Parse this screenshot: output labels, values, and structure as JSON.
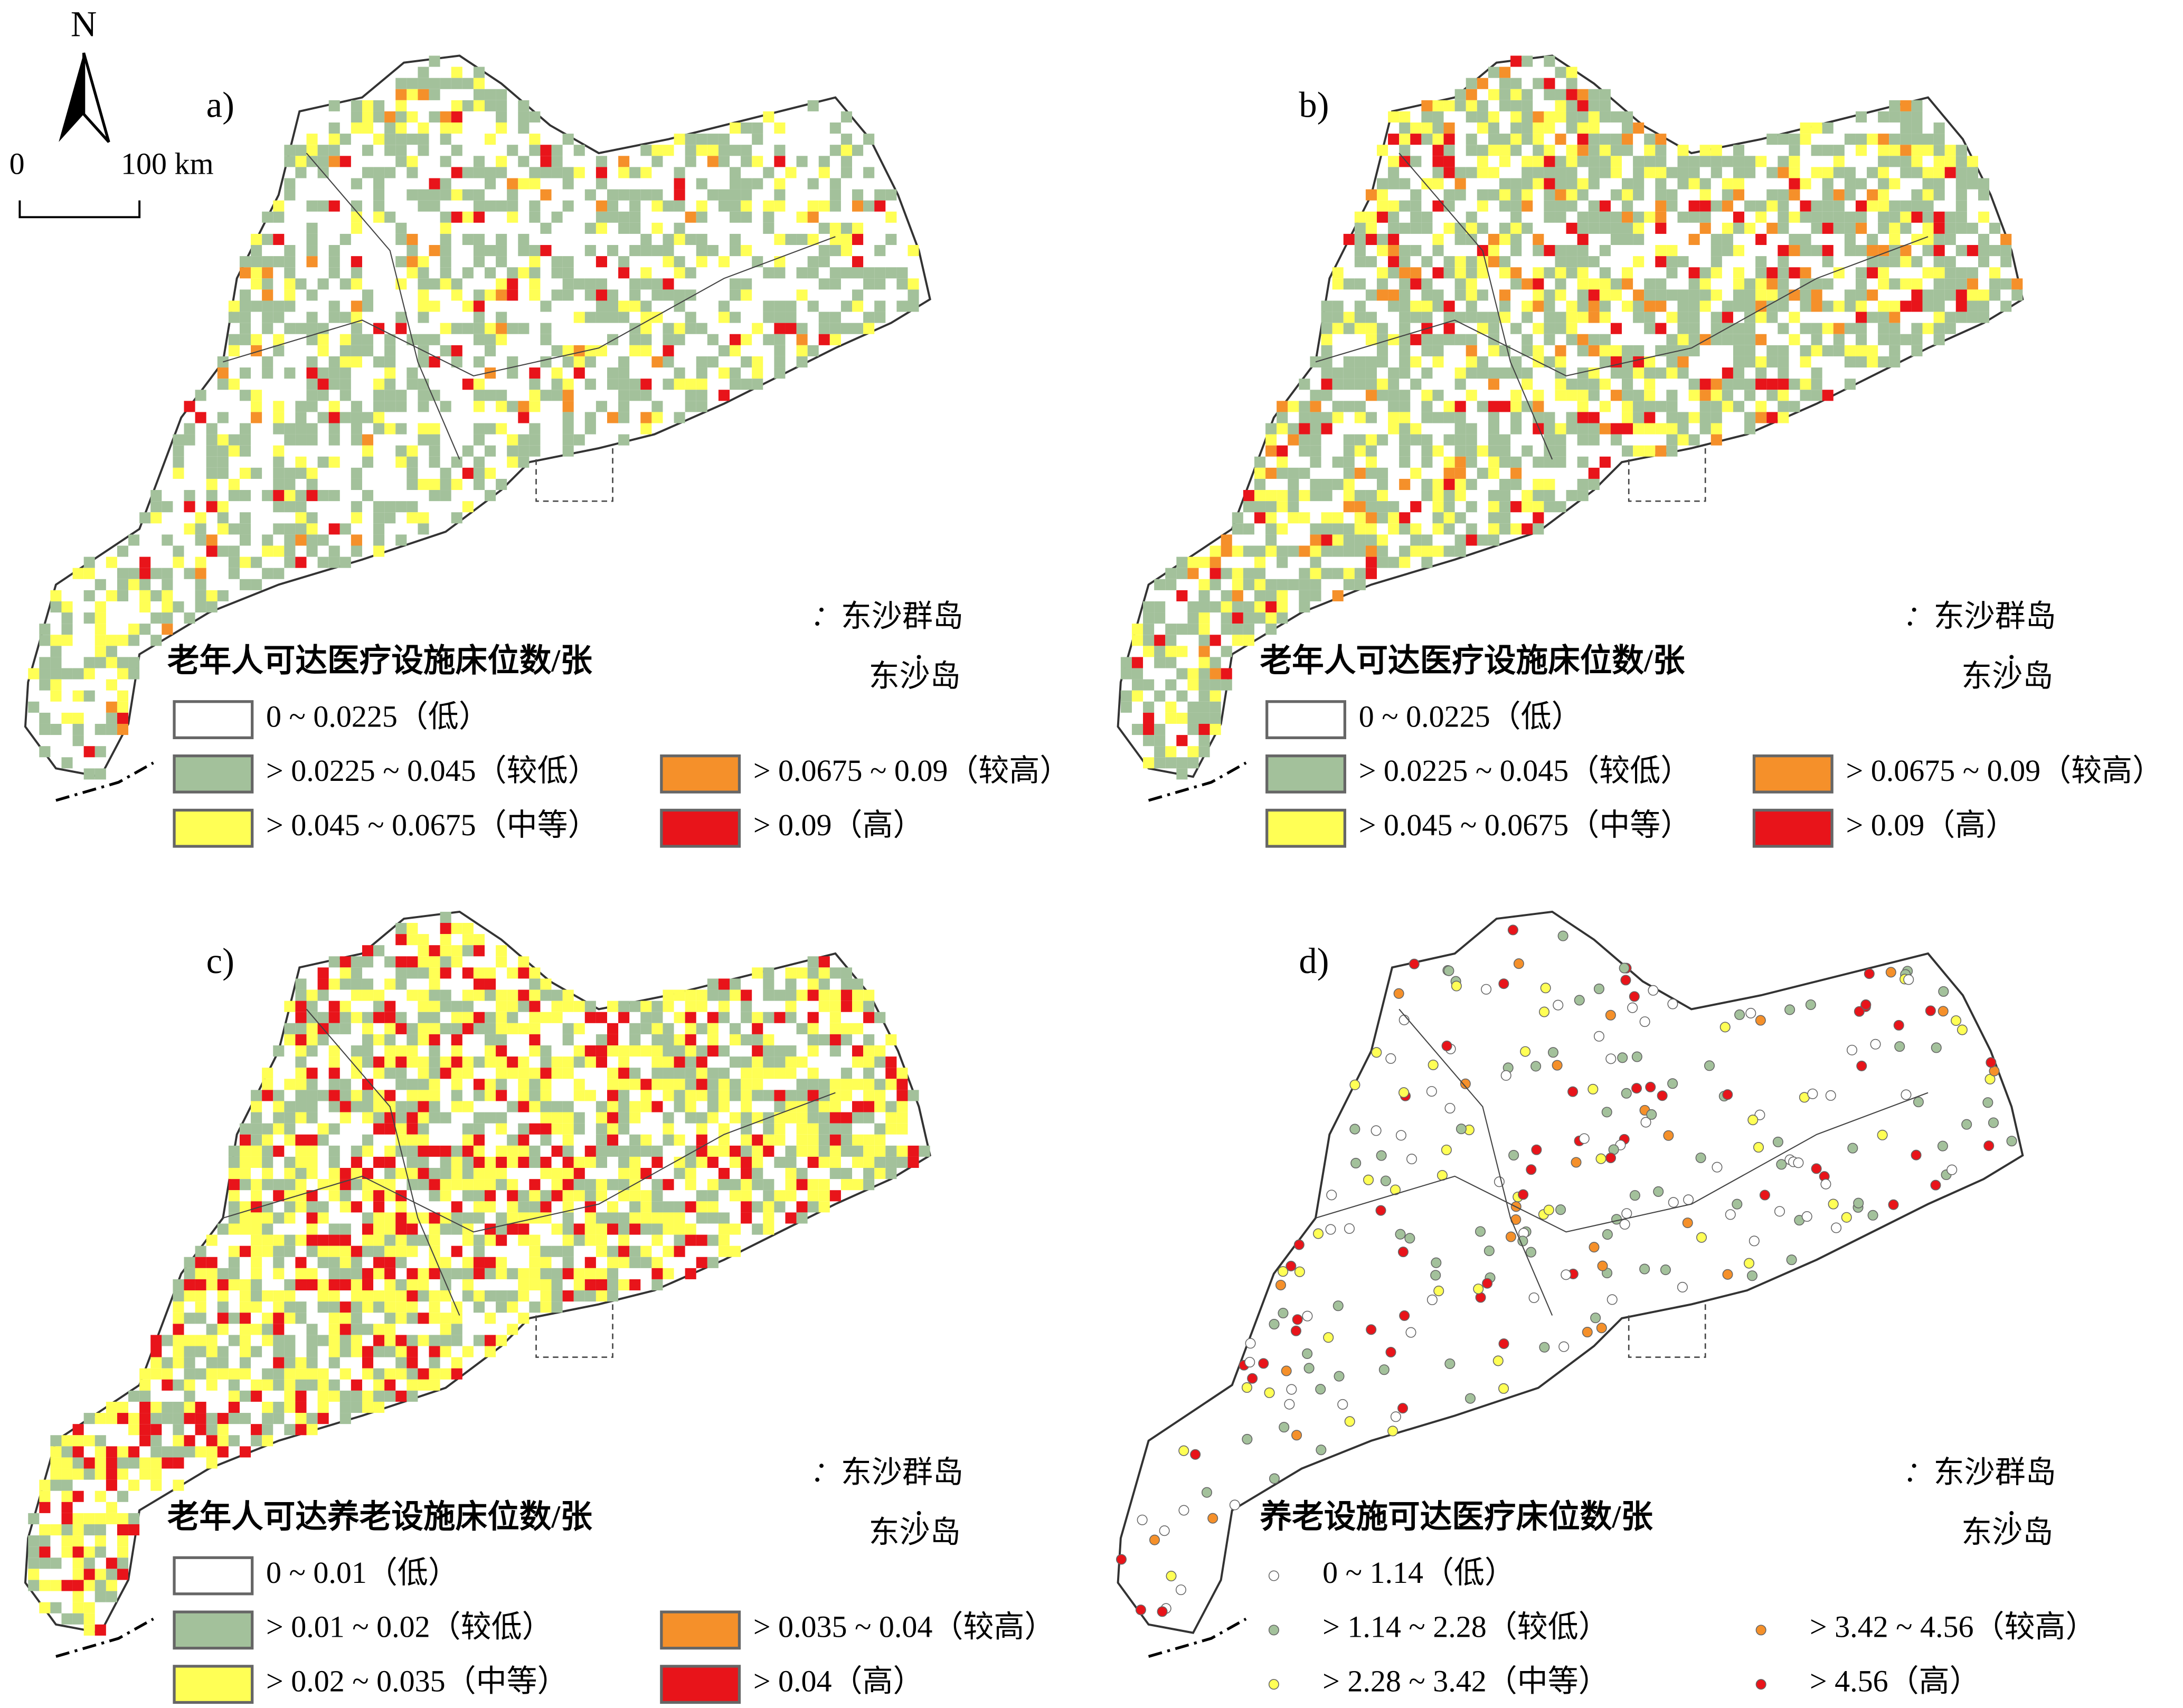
{
  "north_arrow": {
    "label": "N"
  },
  "scale_bar": {
    "labels": [
      "0",
      "100 km"
    ]
  },
  "panels": [
    {
      "label": "a)",
      "islands": [
        "东沙群岛",
        "东沙岛"
      ],
      "legend": {
        "title": "老年人可达医疗设施床位数/张",
        "symbol": "box",
        "items": [
          {
            "label": "0 ~ 0.0225（低）",
            "color": "#ffffff"
          },
          {
            "label": "> 0.0225 ~ 0.045（较低）",
            "color": "#a3c19b"
          },
          {
            "label": "> 0.045 ~ 0.0675（中等）",
            "color": "#ffff55"
          },
          {
            "label": "> 0.0675 ~ 0.09（较高）",
            "color": "#f5902a"
          },
          {
            "label": "> 0.09（高）",
            "color": "#e8141a"
          }
        ]
      }
    },
    {
      "label": "b)",
      "islands": [
        "东沙群岛",
        "东沙岛"
      ],
      "legend": {
        "title": "老年人可达医疗设施床位数/张",
        "symbol": "box",
        "items": [
          {
            "label": "0 ~ 0.0225（低）",
            "color": "#ffffff"
          },
          {
            "label": "> 0.0225 ~ 0.045（较低）",
            "color": "#a3c19b"
          },
          {
            "label": "> 0.045 ~ 0.0675（中等）",
            "color": "#ffff55"
          },
          {
            "label": "> 0.0675 ~ 0.09（较高）",
            "color": "#f5902a"
          },
          {
            "label": "> 0.09（高）",
            "color": "#e8141a"
          }
        ]
      }
    },
    {
      "label": "c)",
      "islands": [
        "东沙群岛",
        "东沙岛"
      ],
      "legend": {
        "title": "老年人可达养老设施床位数/张",
        "symbol": "box",
        "items": [
          {
            "label": "0 ~ 0.01（低）",
            "color": "#ffffff"
          },
          {
            "label": "> 0.01 ~ 0.02（较低）",
            "color": "#a3c19b"
          },
          {
            "label": "> 0.02 ~ 0.035（中等）",
            "color": "#ffff55"
          },
          {
            "label": "> 0.035 ~ 0.04（较高）",
            "color": "#f5902a"
          },
          {
            "label": "> 0.04（高）",
            "color": "#e8141a"
          }
        ]
      }
    },
    {
      "label": "d)",
      "islands": [
        "东沙群岛",
        "东沙岛"
      ],
      "legend": {
        "title": "养老设施可达医疗床位数/张",
        "symbol": "dot",
        "items": [
          {
            "label": "0 ~ 1.14（低）",
            "color": "#ffffff"
          },
          {
            "label": "> 1.14 ~ 2.28（较低）",
            "color": "#a3c19b"
          },
          {
            "label": "> 2.28 ~ 3.42（中等）",
            "color": "#ffff55"
          },
          {
            "label": "> 3.42 ~ 4.56（较高）",
            "color": "#f5902a"
          },
          {
            "label": "> 4.56（高）",
            "color": "#e8141a"
          }
        ]
      }
    }
  ]
}
